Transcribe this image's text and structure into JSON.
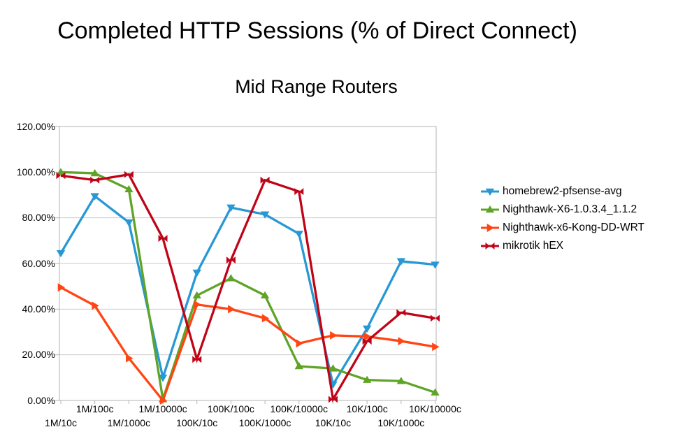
{
  "chart_data": {
    "type": "line",
    "title": "Completed HTTP Sessions (% of Direct Connect)",
    "subtitle": "Mid Range Routers",
    "categories": [
      "1M/10c",
      "1M/100c",
      "1M/1000c",
      "1M/10000c",
      "100K/10c",
      "100K/100c",
      "100K/1000c",
      "100K/10000c",
      "10K/10c",
      "10K/100c",
      "10K/1000c",
      "10K/10000c"
    ],
    "series": [
      {
        "name": "homebrew2-pfsense-avg",
        "color": "#2798d4",
        "marker": "triangle-down",
        "values": [
          64.5,
          89.5,
          78,
          10,
          56,
          84.5,
          81.5,
          73,
          7,
          31.5,
          61,
          59.5
        ]
      },
      {
        "name": "Nighthawk-X6-1.0.3.4_1.1.2",
        "color": "#5fa426",
        "marker": "triangle-up",
        "values": [
          100,
          99.5,
          92.5,
          0.5,
          46,
          53.5,
          46,
          15,
          14,
          9,
          8.5,
          3.5
        ]
      },
      {
        "name": "Nighthawk-x6-Kong-DD-WRT",
        "color": "#ff4513",
        "marker": "triangle-right",
        "values": [
          49.5,
          41.5,
          18.5,
          0,
          42,
          40,
          36,
          25,
          28.5,
          28,
          26,
          23.5
        ]
      },
      {
        "name": "mikrotik hEX",
        "color": "#c00418",
        "marker": "bowtie-x",
        "values": [
          98.5,
          96.5,
          99,
          71,
          18,
          61.5,
          96.5,
          91.5,
          0.5,
          26,
          38.5,
          36
        ]
      }
    ],
    "y_axis": {
      "min": 0,
      "max": 120,
      "step": 20,
      "tick_labels": [
        "0.00%",
        "20.00%",
        "40.00%",
        "60.00%",
        "80.00%",
        "100.00%",
        "120.00%"
      ]
    },
    "x_axis": {
      "layout": "staggered-two-rows"
    },
    "grid": "horizontal",
    "legend_position": "right",
    "axis_color": "#b3b3b3",
    "gridline_color": "#c9c9c9"
  }
}
